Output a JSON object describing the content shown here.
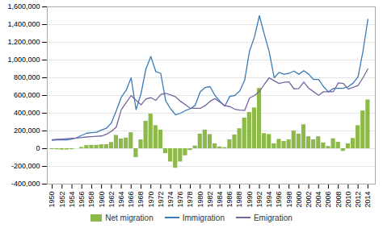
{
  "chart_data": {
    "type": "bar",
    "x": [
      1950,
      1951,
      1952,
      1953,
      1954,
      1955,
      1956,
      1957,
      1958,
      1959,
      1960,
      1961,
      1962,
      1963,
      1964,
      1965,
      1966,
      1967,
      1968,
      1969,
      1970,
      1971,
      1972,
      1973,
      1974,
      1975,
      1976,
      1977,
      1978,
      1979,
      1980,
      1981,
      1982,
      1983,
      1984,
      1985,
      1986,
      1987,
      1988,
      1989,
      1990,
      1991,
      1992,
      1993,
      1994,
      1995,
      1996,
      1997,
      1998,
      1999,
      2000,
      2001,
      2002,
      2003,
      2004,
      2005,
      2006,
      2007,
      2008,
      2009,
      2010,
      2011,
      2012,
      2013,
      2014
    ],
    "series": [
      {
        "name": "Net migration",
        "type": "bar",
        "color": "#8db84a",
        "values": [
          -10000,
          -12000,
          -15000,
          -14000,
          -10000,
          0,
          15000,
          35000,
          38000,
          38000,
          45000,
          45000,
          70000,
          150000,
          110000,
          120000,
          180000,
          -100000,
          100000,
          310000,
          390000,
          260000,
          210000,
          -55000,
          -150000,
          -220000,
          -150000,
          -80000,
          -20000,
          30000,
          165000,
          210000,
          160000,
          55000,
          20000,
          12000,
          100000,
          155000,
          225000,
          345000,
          410000,
          460000,
          680000,
          170000,
          160000,
          55000,
          105000,
          82000,
          100000,
          200000,
          165000,
          270000,
          135000,
          100000,
          135000,
          65000,
          25000,
          112000,
          72000,
          -30000,
          55000,
          115000,
          260000,
          425000,
          550000
        ]
      },
      {
        "name": "Immigration",
        "type": "line",
        "color": "#3a7ab5",
        "values": [
          95000,
          100000,
          100000,
          100000,
          108000,
          125000,
          150000,
          175000,
          180000,
          185000,
          210000,
          230000,
          290000,
          430000,
          580000,
          660000,
          800000,
          440000,
          620000,
          900000,
          1040000,
          870000,
          850000,
          540000,
          450000,
          380000,
          400000,
          430000,
          450000,
          490000,
          640000,
          690000,
          700000,
          600000,
          535000,
          480000,
          590000,
          600000,
          650000,
          770000,
          1100000,
          1260000,
          1500000,
          1290000,
          1090000,
          800000,
          860000,
          840000,
          850000,
          875000,
          840000,
          880000,
          840000,
          780000,
          780000,
          700000,
          640000,
          680000,
          680000,
          680000,
          700000,
          740000,
          810000,
          1100000,
          1460000
        ]
      },
      {
        "name": "Emigration",
        "type": "line",
        "color": "#7565a0",
        "values": [
          100000,
          105000,
          108000,
          112000,
          116000,
          120000,
          126000,
          132000,
          136000,
          140000,
          143000,
          162000,
          195000,
          245000,
          440000,
          520000,
          600000,
          545000,
          495000,
          560000,
          575000,
          545000,
          610000,
          625000,
          605000,
          585000,
          535000,
          495000,
          455000,
          455000,
          455000,
          485000,
          535000,
          565000,
          525000,
          485000,
          475000,
          445000,
          435000,
          430000,
          570000,
          600000,
          645000,
          725000,
          800000,
          765000,
          735000,
          748000,
          753000,
          675000,
          678000,
          752000,
          682000,
          642000,
          602000,
          642000,
          642000,
          643000,
          742000,
          736000,
          672000,
          692000,
          712000,
          800000,
          900000
        ]
      }
    ],
    "xlim": [
      1949,
      2015.5
    ],
    "xticks": [
      1950,
      1952,
      1954,
      1956,
      1958,
      1960,
      1962,
      1964,
      1966,
      1968,
      1970,
      1972,
      1974,
      1976,
      1978,
      1980,
      1982,
      1984,
      1986,
      1988,
      1990,
      1992,
      1994,
      1996,
      1998,
      2000,
      2002,
      2004,
      2006,
      2008,
      2010,
      2012,
      2014
    ],
    "ylim": [
      -400000,
      1600000
    ],
    "yticks": [
      {
        "value": -400000,
        "label": "-400,000"
      },
      {
        "value": -200000,
        "label": "-200,000"
      },
      0,
      {
        "value": 200000,
        "label": "200,000"
      },
      {
        "value": 400000,
        "label": "400,000"
      },
      {
        "value": 600000,
        "label": "600,000"
      },
      {
        "value": 800000,
        "label": "800,000"
      },
      {
        "value": 1000000,
        "label": "1,000,000"
      },
      {
        "value": 1200000,
        "label": "1,200,000"
      },
      {
        "value": 1400000,
        "label": "1,400,000"
      },
      {
        "value": 1600000,
        "label": "1,600,000"
      }
    ],
    "grid": true,
    "legend": "bottom"
  }
}
